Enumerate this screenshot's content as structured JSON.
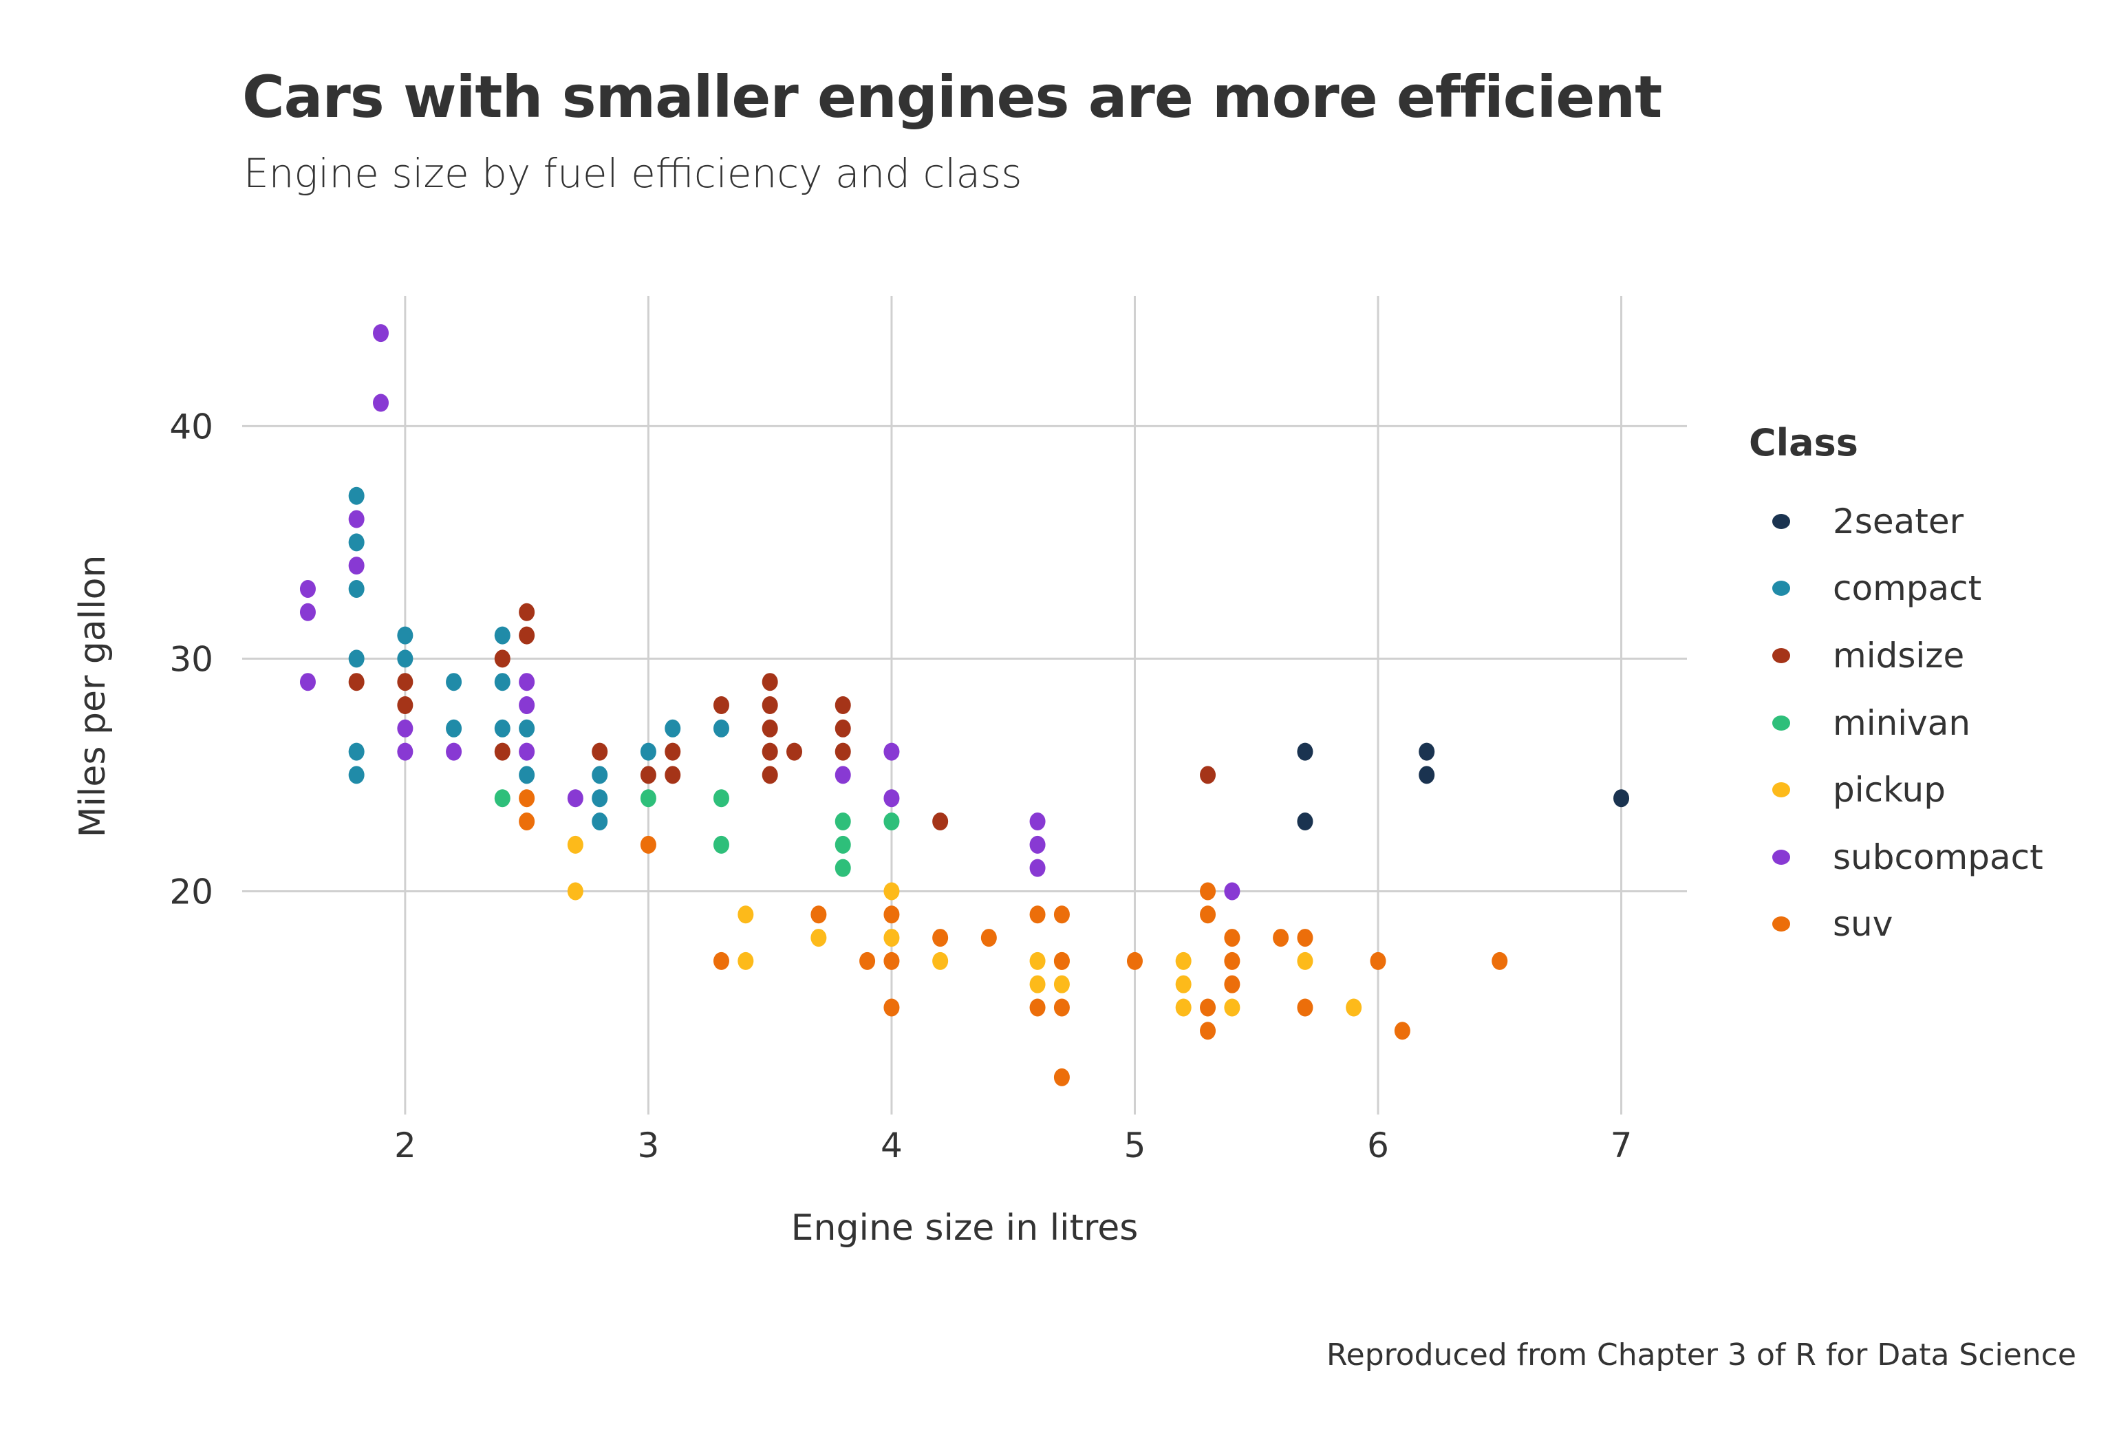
{
  "chart_data": {
    "type": "scatter",
    "title": "Cars with smaller engines are more efficient",
    "subtitle": "Engine size by fuel efficiency and class",
    "caption": "Reproduced from Chapter 3 of R for Data Science",
    "xlabel": "Engine size in litres",
    "ylabel": "Miles per gallon",
    "xlim": [
      1.33,
      7.27
    ],
    "ylim": [
      10.4,
      45.6
    ],
    "xticks": [
      2,
      3,
      4,
      5,
      6,
      7
    ],
    "yticks": [
      20,
      30,
      40
    ],
    "grid": true,
    "legend": {
      "title": "Class",
      "position": "right",
      "entries": [
        {
          "name": "2seater",
          "color": "#1a3350"
        },
        {
          "name": "compact",
          "color": "#208ba8"
        },
        {
          "name": "midsize",
          "color": "#a53418"
        },
        {
          "name": "minivan",
          "color": "#2ebf7a"
        },
        {
          "name": "pickup",
          "color": "#fdba1a"
        },
        {
          "name": "subcompact",
          "color": "#8839d3"
        },
        {
          "name": "suv",
          "color": "#ec6e0a"
        }
      ]
    },
    "series": [
      {
        "name": "2seater",
        "points": [
          [
            5.7,
            26
          ],
          [
            5.7,
            23
          ],
          [
            6.2,
            26
          ],
          [
            6.2,
            25
          ],
          [
            7.0,
            24
          ]
        ]
      },
      {
        "name": "compact",
        "points": [
          [
            1.8,
            37
          ],
          [
            1.8,
            35
          ],
          [
            1.8,
            33
          ],
          [
            1.8,
            30
          ],
          [
            1.8,
            26
          ],
          [
            1.8,
            25
          ],
          [
            2.0,
            31
          ],
          [
            2.0,
            30
          ],
          [
            2.2,
            29
          ],
          [
            2.2,
            27
          ],
          [
            2.4,
            31
          ],
          [
            2.4,
            29
          ],
          [
            2.4,
            27
          ],
          [
            2.5,
            27
          ],
          [
            2.5,
            25
          ],
          [
            2.8,
            25
          ],
          [
            2.8,
            24
          ],
          [
            2.8,
            23
          ],
          [
            3.0,
            26
          ],
          [
            3.1,
            27
          ],
          [
            3.3,
            27
          ]
        ]
      },
      {
        "name": "midsize",
        "points": [
          [
            1.8,
            29
          ],
          [
            2.0,
            29
          ],
          [
            2.0,
            28
          ],
          [
            2.4,
            30
          ],
          [
            2.4,
            26
          ],
          [
            2.5,
            32
          ],
          [
            2.5,
            31
          ],
          [
            2.8,
            26
          ],
          [
            3.0,
            25
          ],
          [
            3.1,
            26
          ],
          [
            3.1,
            25
          ],
          [
            3.3,
            28
          ],
          [
            3.5,
            29
          ],
          [
            3.5,
            28
          ],
          [
            3.5,
            27
          ],
          [
            3.5,
            26
          ],
          [
            3.5,
            25
          ],
          [
            3.6,
            26
          ],
          [
            3.8,
            28
          ],
          [
            3.8,
            27
          ],
          [
            3.8,
            26
          ],
          [
            4.2,
            23
          ],
          [
            5.3,
            25
          ]
        ]
      },
      {
        "name": "minivan",
        "points": [
          [
            2.4,
            24
          ],
          [
            3.0,
            24
          ],
          [
            3.3,
            24
          ],
          [
            3.3,
            22
          ],
          [
            3.8,
            23
          ],
          [
            3.8,
            22
          ],
          [
            3.8,
            21
          ],
          [
            4.0,
            23
          ]
        ]
      },
      {
        "name": "pickup",
        "points": [
          [
            2.7,
            22
          ],
          [
            2.7,
            20
          ],
          [
            3.4,
            19
          ],
          [
            3.4,
            17
          ],
          [
            3.7,
            18
          ],
          [
            4.0,
            20
          ],
          [
            4.0,
            18
          ],
          [
            4.2,
            17
          ],
          [
            4.6,
            17
          ],
          [
            4.6,
            16
          ],
          [
            4.7,
            17
          ],
          [
            4.7,
            16
          ],
          [
            5.2,
            17
          ],
          [
            5.2,
            16
          ],
          [
            5.2,
            15
          ],
          [
            5.4,
            15
          ],
          [
            5.7,
            17
          ],
          [
            5.9,
            15
          ]
        ]
      },
      {
        "name": "subcompact",
        "points": [
          [
            1.6,
            33
          ],
          [
            1.6,
            32
          ],
          [
            1.6,
            29
          ],
          [
            1.8,
            36
          ],
          [
            1.8,
            34
          ],
          [
            1.9,
            44
          ],
          [
            1.9,
            41
          ],
          [
            2.0,
            27
          ],
          [
            2.0,
            26
          ],
          [
            2.2,
            26
          ],
          [
            2.5,
            29
          ],
          [
            2.5,
            28
          ],
          [
            2.5,
            26
          ],
          [
            2.7,
            24
          ],
          [
            3.8,
            25
          ],
          [
            4.0,
            26
          ],
          [
            4.0,
            24
          ],
          [
            4.6,
            23
          ],
          [
            4.6,
            22
          ],
          [
            4.6,
            21
          ],
          [
            5.4,
            20
          ]
        ]
      },
      {
        "name": "suv",
        "points": [
          [
            2.5,
            24
          ],
          [
            2.5,
            23
          ],
          [
            3.0,
            22
          ],
          [
            3.3,
            17
          ],
          [
            3.7,
            19
          ],
          [
            3.9,
            17
          ],
          [
            4.0,
            19
          ],
          [
            4.0,
            17
          ],
          [
            4.0,
            15
          ],
          [
            4.2,
            18
          ],
          [
            4.4,
            18
          ],
          [
            4.6,
            19
          ],
          [
            4.6,
            15
          ],
          [
            4.7,
            19
          ],
          [
            4.7,
            17
          ],
          [
            4.7,
            15
          ],
          [
            4.7,
            12
          ],
          [
            5.0,
            17
          ],
          [
            5.3,
            20
          ],
          [
            5.3,
            19
          ],
          [
            5.3,
            15
          ],
          [
            5.3,
            14
          ],
          [
            5.4,
            18
          ],
          [
            5.4,
            17
          ],
          [
            5.4,
            16
          ],
          [
            5.6,
            18
          ],
          [
            5.7,
            18
          ],
          [
            5.7,
            15
          ],
          [
            6.0,
            17
          ],
          [
            6.1,
            14
          ],
          [
            6.5,
            17
          ]
        ]
      }
    ]
  }
}
